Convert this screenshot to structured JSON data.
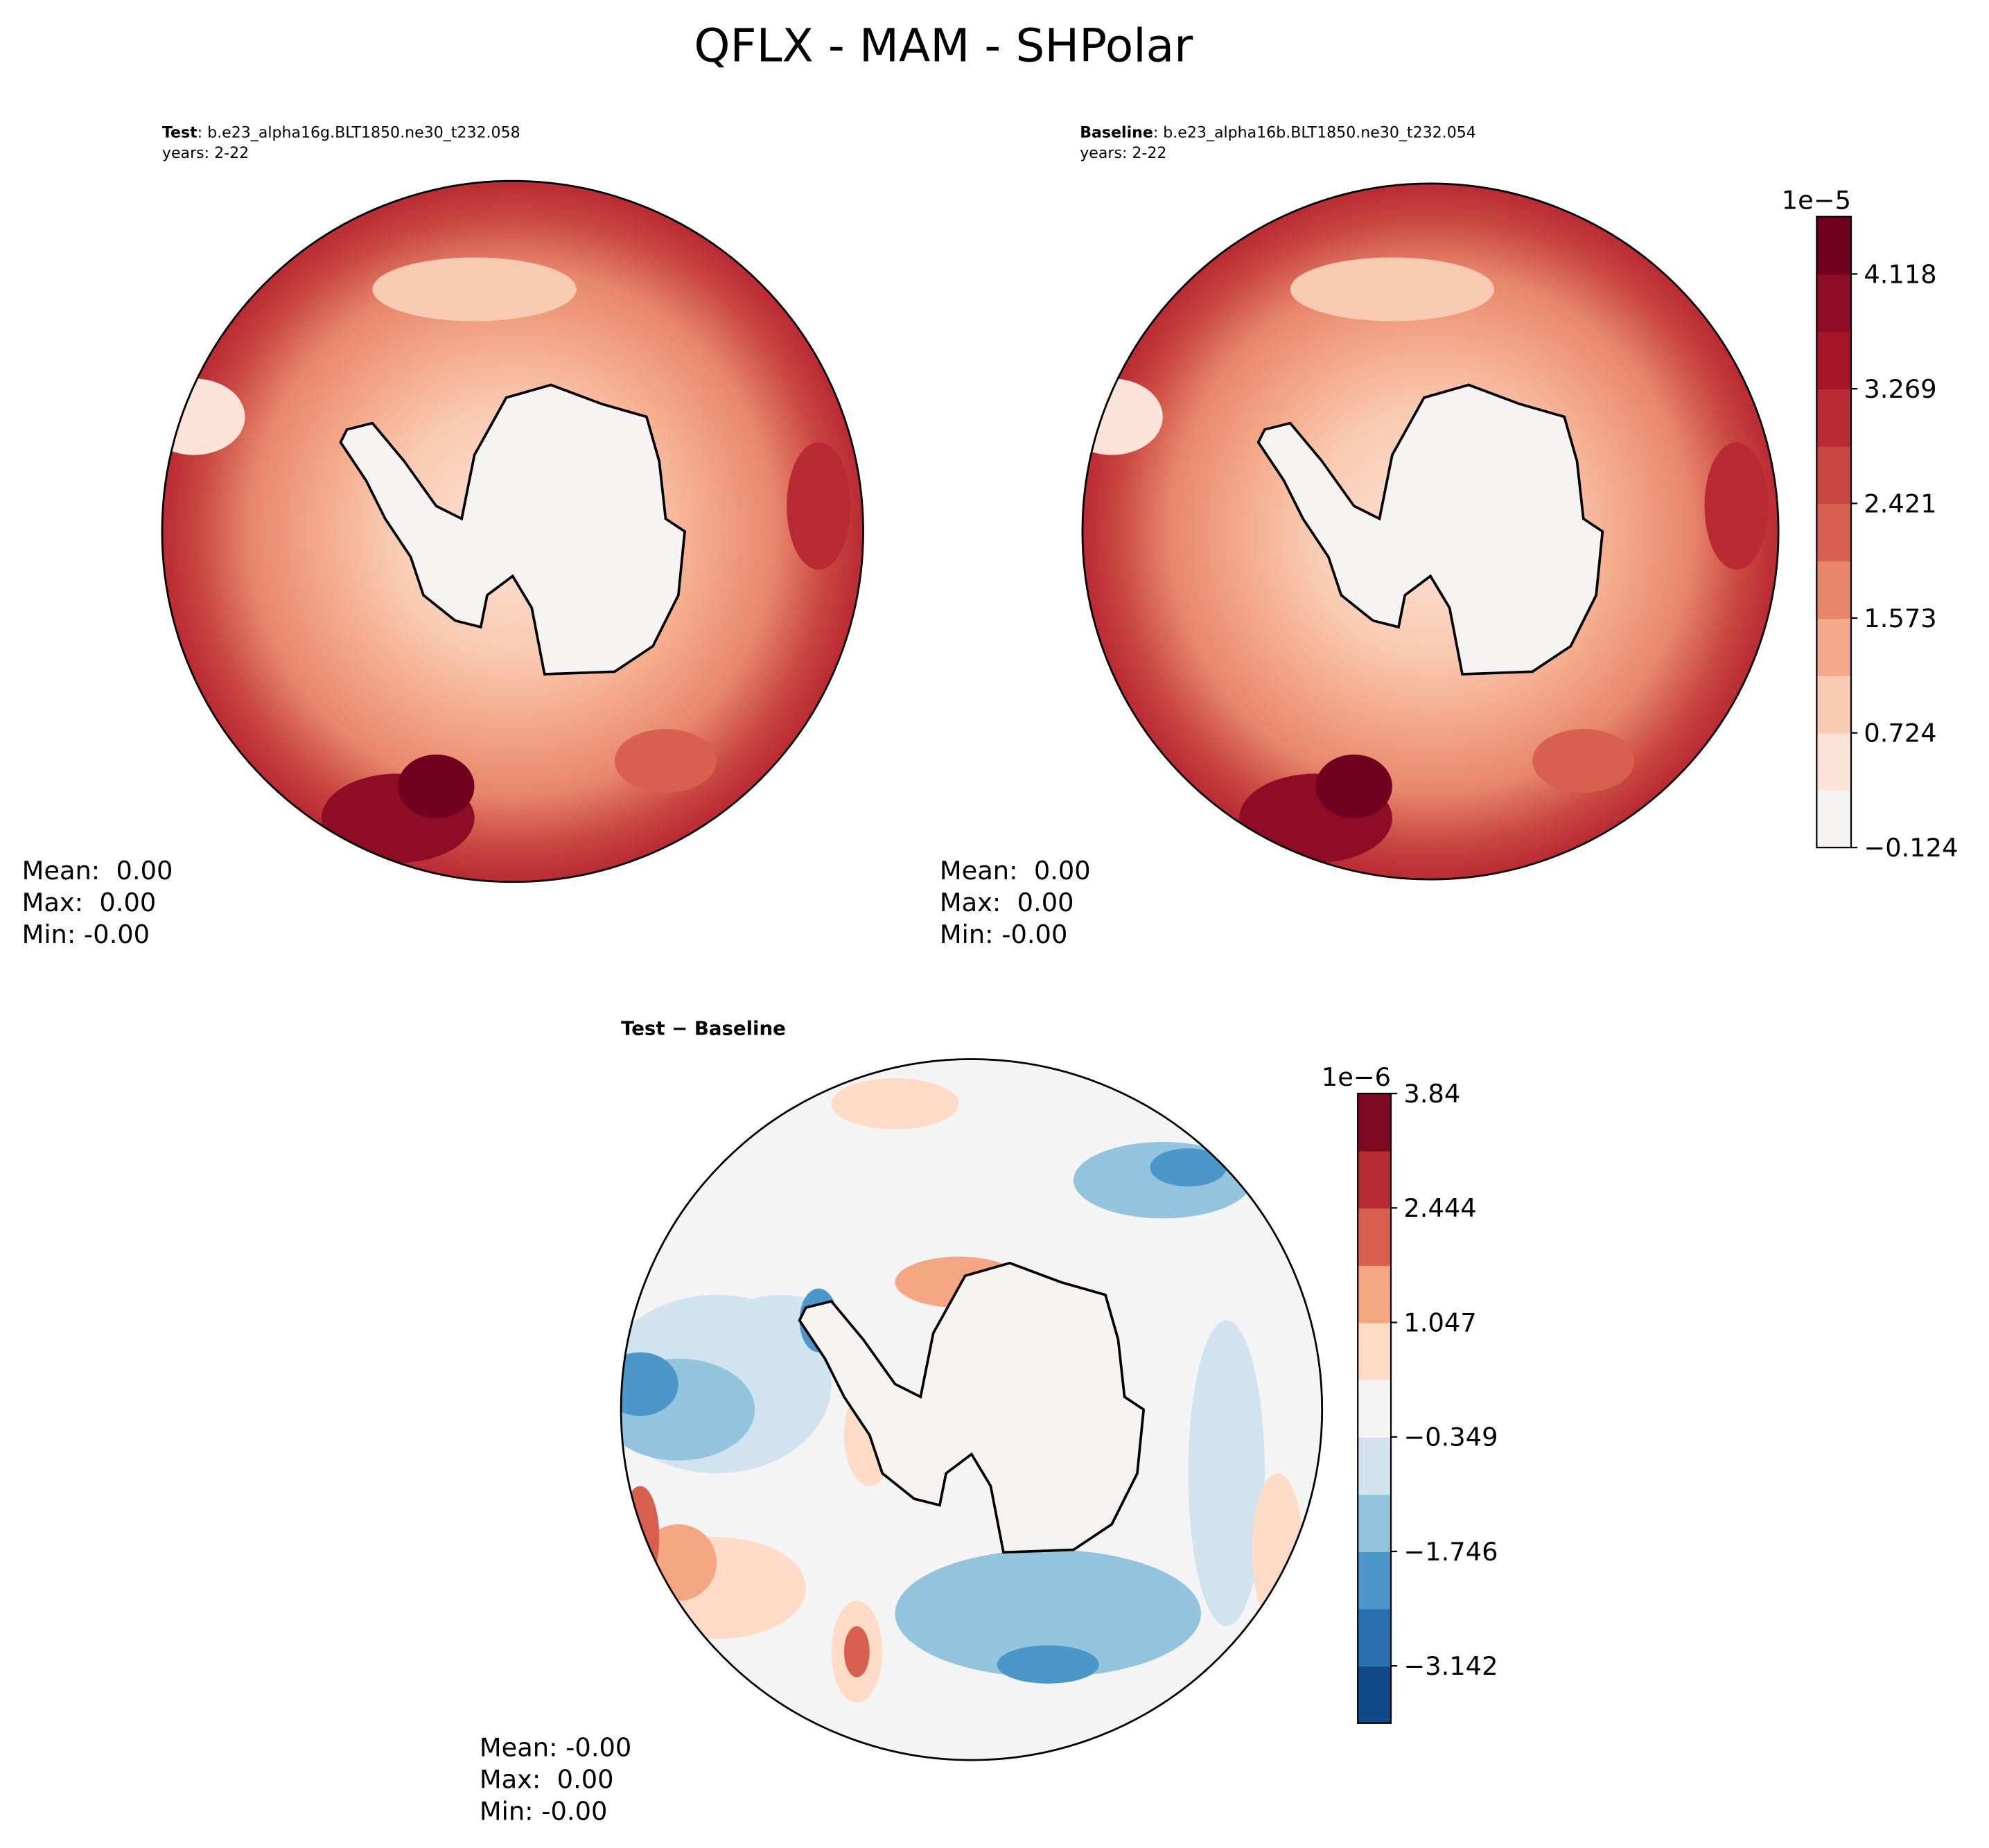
{
  "title": "QFLX - MAM - SHPolar",
  "chart_data": [
    {
      "type": "contour-map",
      "subtitle_bold": "Test",
      "subtitle": ": b.e23_alpha16g.BLT1850.ne30_t232.058",
      "years": "years: 2-22",
      "stats": [
        "Mean:  0.00",
        "Max:  0.00",
        "Min: -0.00"
      ]
    },
    {
      "type": "contour-map",
      "subtitle_bold": "Baseline",
      "subtitle": ": b.e23_alpha16b.BLT1850.ne30_t232.054",
      "years": "years: 2-22",
      "stats": [
        "Mean:  0.00",
        "Max:  0.00",
        "Min: -0.00"
      ],
      "colorbar": {
        "offset_label": "1e−5",
        "clim": [
          -0.124,
          4.542
        ],
        "ticks": [
          {
            "value": -0.124,
            "label": "−0.124"
          },
          0.724,
          1.573,
          2.421,
          3.269,
          4.118
        ],
        "colors": [
          "#f6f4f2",
          "#fbe4d7",
          "#f9cab2",
          "#f4a989",
          "#e7866a",
          "#d7604e",
          "#c94741",
          "#ba2a34",
          "#a81529",
          "#8e0c25",
          "#6f0020"
        ]
      }
    },
    {
      "type": "contour-map",
      "subtitle_bold": "Test − Baseline",
      "stats": [
        "Mean: -0.00",
        "Max:  0.00",
        "Min: -0.00"
      ],
      "colorbar": {
        "offset_label": "1e−6",
        "clim": [
          -3.84,
          3.84
        ],
        "ticks": [
          {
            "value": -3.142,
            "label": "−3.142"
          },
          {
            "value": -1.746,
            "label": "−1.746"
          },
          {
            "value": -0.349,
            "label": "−0.349"
          },
          1.047,
          2.444,
          3.84
        ],
        "colors": [
          "#124a87",
          "#2a71b2",
          "#4c97c9",
          "#93c4de",
          "#d0e3ef",
          "#f4f4f4",
          "#fddbc7",
          "#f4a582",
          "#d6604d",
          "#b72b34",
          "#7d0a22"
        ]
      }
    }
  ]
}
